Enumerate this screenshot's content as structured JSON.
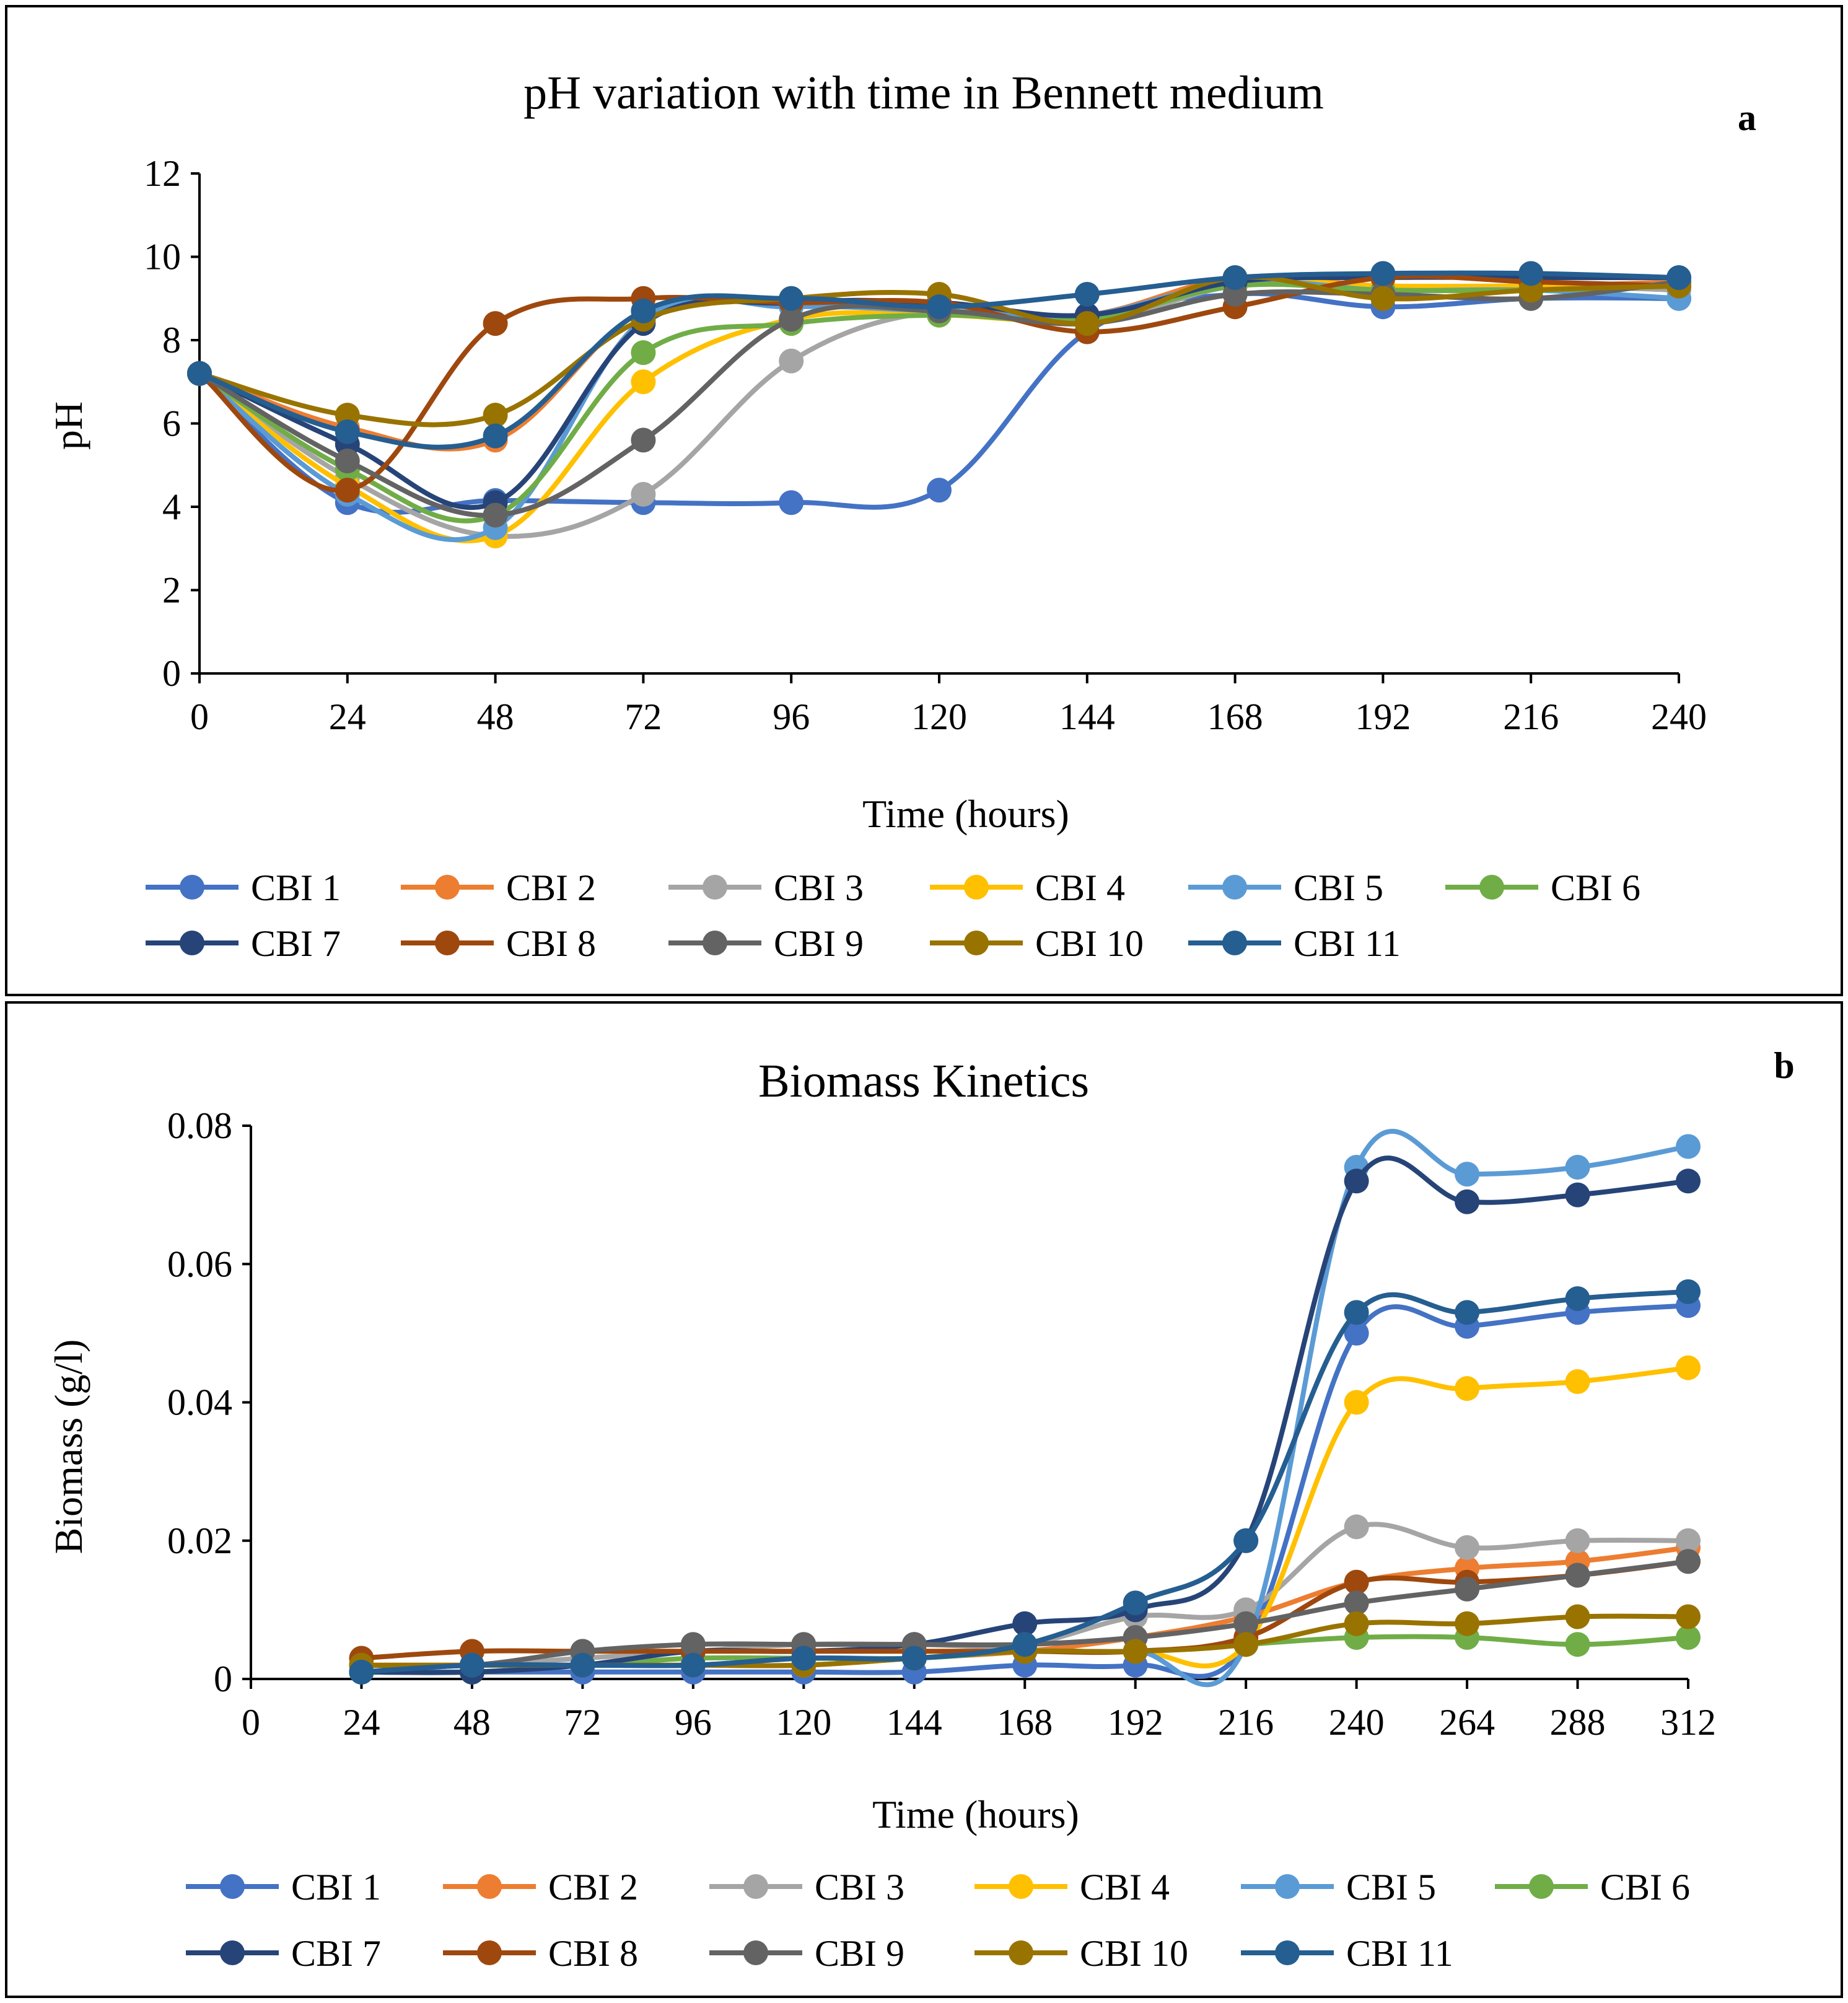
{
  "panels": [
    {
      "letter": "a",
      "chart_data": {
        "type": "line",
        "title": "pH variation with time in Bennett medium",
        "xlabel": "Time (hours)",
        "ylabel": "pH",
        "x": [
          0,
          24,
          48,
          72,
          96,
          120,
          144,
          168,
          192,
          216,
          240
        ],
        "xticks": [
          "0",
          "24",
          "48",
          "72",
          "96",
          "120",
          "144",
          "168",
          "192",
          "216",
          "240"
        ],
        "yticks": [
          "0",
          "2",
          "4",
          "6",
          "8",
          "10",
          "12"
        ],
        "xlim": [
          0,
          240
        ],
        "ylim": [
          0,
          12
        ],
        "smooth": true,
        "legend": "bottom",
        "series": [
          {
            "name": "CBI 1",
            "color": "#4472C4",
            "values": [
              7.2,
              4.1,
              4.15,
              4.1,
              4.1,
              4.4,
              8.2,
              9.1,
              8.8,
              9.0,
              9.0
            ]
          },
          {
            "name": "CBI 2",
            "color": "#ED7D31",
            "values": [
              7.2,
              5.9,
              5.6,
              8.7,
              8.9,
              8.7,
              8.6,
              9.5,
              9.3,
              9.3,
              9.4
            ]
          },
          {
            "name": "CBI 3",
            "color": "#A5A5A5",
            "values": [
              7.2,
              4.7,
              3.3,
              4.3,
              7.5,
              8.7,
              8.4,
              9.3,
              9.2,
              9.3,
              9.2
            ]
          },
          {
            "name": "CBI 4",
            "color": "#FFC000",
            "values": [
              7.2,
              4.5,
              3.3,
              7.0,
              8.5,
              8.6,
              8.5,
              9.4,
              9.3,
              9.3,
              9.3
            ]
          },
          {
            "name": "CBI 5",
            "color": "#5B9BD5",
            "values": [
              7.2,
              4.3,
              3.5,
              8.5,
              8.8,
              8.7,
              8.6,
              9.4,
              9.2,
              9.2,
              9.0
            ]
          },
          {
            "name": "CBI 6",
            "color": "#70AD47",
            "values": [
              7.2,
              4.9,
              3.8,
              7.7,
              8.4,
              8.6,
              8.5,
              9.3,
              9.2,
              9.2,
              9.3
            ]
          },
          {
            "name": "CBI 7",
            "color": "#264478",
            "values": [
              7.2,
              5.5,
              4.1,
              8.4,
              8.9,
              8.9,
              8.6,
              9.4,
              9.5,
              9.5,
              9.5
            ]
          },
          {
            "name": "CBI 8",
            "color": "#9E480E",
            "values": [
              7.2,
              4.4,
              8.4,
              9.0,
              8.9,
              8.9,
              8.2,
              8.8,
              9.5,
              9.4,
              9.3
            ]
          },
          {
            "name": "CBI 9",
            "color": "#636363",
            "values": [
              7.2,
              5.1,
              3.8,
              5.6,
              8.5,
              8.7,
              8.4,
              9.1,
              9.1,
              9.0,
              9.4
            ]
          },
          {
            "name": "CBI 10",
            "color": "#997300",
            "values": [
              7.2,
              6.2,
              6.2,
              8.5,
              9.0,
              9.1,
              8.4,
              9.5,
              9.0,
              9.2,
              9.3
            ]
          },
          {
            "name": "CBI 11",
            "color": "#255E91",
            "values": [
              7.2,
              5.8,
              5.7,
              8.7,
              9.0,
              8.8,
              9.1,
              9.5,
              9.6,
              9.6,
              9.5
            ]
          }
        ]
      }
    },
    {
      "letter": "b",
      "chart_data": {
        "type": "line",
        "title": "Biomass Kinetics",
        "xlabel": "Time (hours)",
        "ylabel": "Biomass (g/l)",
        "x": [
          24,
          48,
          72,
          96,
          120,
          144,
          168,
          192,
          216,
          240,
          264,
          288,
          312
        ],
        "xticks": [
          "0",
          "24",
          "48",
          "72",
          "96",
          "120",
          "144",
          "168",
          "192",
          "216",
          "240",
          "264",
          "288",
          "312"
        ],
        "xtick_values": [
          0,
          24,
          48,
          72,
          96,
          120,
          144,
          168,
          192,
          216,
          240,
          264,
          288,
          312
        ],
        "yticks": [
          "0",
          "0.02",
          "0.04",
          "0.06",
          "0.08"
        ],
        "xlim": [
          0,
          312
        ],
        "ylim": [
          0,
          0.08
        ],
        "smooth": true,
        "legend": "bottom",
        "series": [
          {
            "name": "CBI 1",
            "color": "#4472C4",
            "values": [
              0.001,
              0.001,
              0.001,
              0.001,
              0.001,
              0.001,
              0.002,
              0.002,
              0.005,
              0.05,
              0.051,
              0.053,
              0.054
            ]
          },
          {
            "name": "CBI 2",
            "color": "#ED7D31",
            "values": [
              0.002,
              0.002,
              0.002,
              0.002,
              0.002,
              0.003,
              0.004,
              0.006,
              0.009,
              0.014,
              0.016,
              0.017,
              0.019
            ]
          },
          {
            "name": "CBI 3",
            "color": "#A5A5A5",
            "values": [
              0.002,
              0.002,
              0.003,
              0.004,
              0.005,
              0.005,
              0.005,
              0.009,
              0.01,
              0.022,
              0.019,
              0.02,
              0.02
            ]
          },
          {
            "name": "CBI 4",
            "color": "#FFC000",
            "values": [
              0.002,
              0.002,
              0.002,
              0.002,
              0.002,
              0.003,
              0.004,
              0.004,
              0.005,
              0.04,
              0.042,
              0.043,
              0.045
            ]
          },
          {
            "name": "CBI 5",
            "color": "#5B9BD5",
            "values": [
              0.001,
              0.001,
              0.002,
              0.002,
              0.003,
              0.003,
              0.004,
              0.004,
              0.005,
              0.074,
              0.073,
              0.074,
              0.077
            ]
          },
          {
            "name": "CBI 6",
            "color": "#70AD47",
            "values": [
              0.001,
              0.002,
              0.002,
              0.003,
              0.003,
              0.003,
              0.004,
              0.004,
              0.005,
              0.006,
              0.006,
              0.005,
              0.006
            ]
          },
          {
            "name": "CBI 7",
            "color": "#264478",
            "values": [
              0.001,
              0.001,
              0.002,
              0.004,
              0.004,
              0.005,
              0.008,
              0.01,
              0.02,
              0.072,
              0.069,
              0.07,
              0.072
            ]
          },
          {
            "name": "CBI 8",
            "color": "#9E480E",
            "values": [
              0.003,
              0.004,
              0.004,
              0.004,
              0.004,
              0.004,
              0.004,
              0.004,
              0.006,
              0.014,
              0.014,
              0.015,
              0.017
            ]
          },
          {
            "name": "CBI 9",
            "color": "#636363",
            "values": [
              0.002,
              0.002,
              0.004,
              0.005,
              0.005,
              0.005,
              0.005,
              0.006,
              0.008,
              0.011,
              0.013,
              0.015,
              0.017
            ]
          },
          {
            "name": "CBI 10",
            "color": "#997300",
            "values": [
              0.002,
              0.002,
              0.002,
              0.002,
              0.002,
              0.003,
              0.004,
              0.004,
              0.005,
              0.008,
              0.008,
              0.009,
              0.009
            ]
          },
          {
            "name": "CBI 11",
            "color": "#255E91",
            "values": [
              0.001,
              0.002,
              0.002,
              0.002,
              0.003,
              0.003,
              0.005,
              0.011,
              0.02,
              0.053,
              0.053,
              0.055,
              0.056
            ]
          }
        ]
      }
    }
  ]
}
